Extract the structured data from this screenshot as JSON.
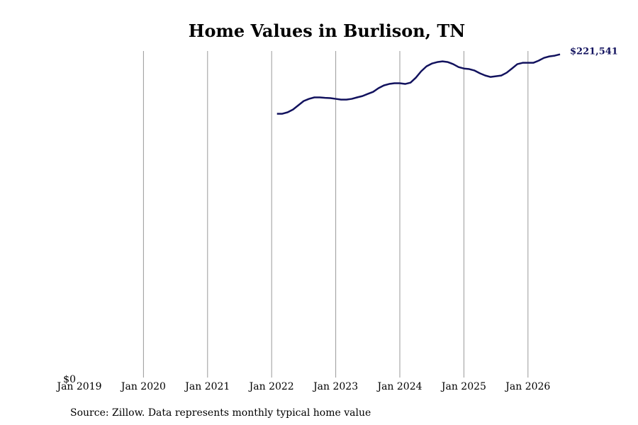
{
  "chart_data": {
    "type": "line",
    "title": "Home Values in Burlison, TN",
    "source": "Source: Zillow. Data represents monthly typical home value",
    "x": [
      "2022-02",
      "2022-03",
      "2022-04",
      "2022-05",
      "2022-06",
      "2022-07",
      "2022-08",
      "2022-09",
      "2022-10",
      "2022-11",
      "2022-12",
      "2023-01",
      "2023-02",
      "2023-03",
      "2023-04",
      "2023-05",
      "2023-06",
      "2023-07",
      "2023-08",
      "2023-09",
      "2023-10",
      "2023-11",
      "2023-12",
      "2024-01",
      "2024-02",
      "2024-03",
      "2024-04",
      "2024-05",
      "2024-06",
      "2024-07",
      "2024-08",
      "2024-09",
      "2024-10",
      "2024-11",
      "2024-12",
      "2025-01",
      "2025-02",
      "2025-03",
      "2025-04",
      "2025-05",
      "2025-06",
      "2025-07",
      "2025-08",
      "2025-09",
      "2025-10",
      "2025-11",
      "2025-12",
      "2026-01",
      "2026-02",
      "2026-03",
      "2026-04",
      "2026-05",
      "2026-06",
      "2026-07"
    ],
    "series": [
      {
        "name": "Burlison, TN",
        "color": "#12125e",
        "values": [
          180800,
          180800,
          181800,
          183700,
          186600,
          189500,
          191000,
          192000,
          192000,
          191700,
          191500,
          191000,
          190500,
          190500,
          191000,
          192000,
          192900,
          194400,
          195800,
          198300,
          200200,
          201200,
          201700,
          201700,
          201200,
          202100,
          205500,
          209900,
          213300,
          215200,
          216200,
          216700,
          216200,
          214800,
          212800,
          211800,
          211400,
          210400,
          208500,
          207000,
          206000,
          206500,
          207000,
          208900,
          211800,
          214800,
          215700,
          215700,
          215700,
          217200,
          219100,
          220100,
          220600,
          221541
        ],
        "value_labels": [
          null,
          null,
          null,
          null,
          null,
          null,
          null,
          null,
          null,
          null,
          null,
          null,
          null,
          null,
          null,
          null,
          null,
          null,
          null,
          null,
          null,
          null,
          null,
          null,
          null,
          null,
          null,
          null,
          null,
          null,
          null,
          null,
          null,
          null,
          null,
          null,
          null,
          null,
          null,
          null,
          null,
          null,
          null,
          null,
          null,
          null,
          null,
          null,
          null,
          null,
          null,
          null,
          null,
          "$221,541"
        ]
      }
    ],
    "xlim": [
      "2019-01",
      "2026-07"
    ],
    "xticks": [
      {
        "value": "2019-01",
        "label": "Jan 2019"
      },
      {
        "value": "2020-01",
        "label": "Jan 2020"
      },
      {
        "value": "2021-01",
        "label": "Jan 2021"
      },
      {
        "value": "2022-01",
        "label": "Jan 2022"
      },
      {
        "value": "2023-01",
        "label": "Jan 2023"
      },
      {
        "value": "2024-01",
        "label": "Jan 2024"
      },
      {
        "value": "2025-01",
        "label": "Jan 2025"
      },
      {
        "value": "2026-01",
        "label": "Jan 2026"
      }
    ],
    "ylim": [
      0,
      223800
    ],
    "yticks": [
      {
        "value": 0,
        "label": "$0"
      }
    ],
    "grid": "x"
  }
}
